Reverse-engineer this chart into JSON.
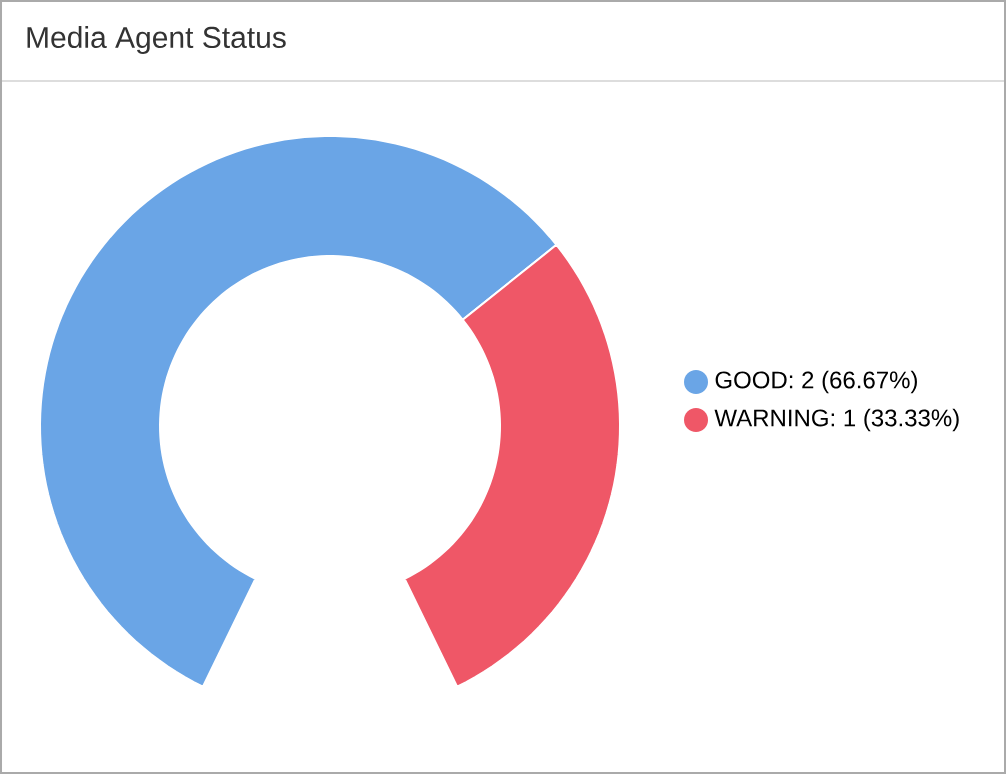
{
  "chart_data": {
    "type": "donut",
    "title": "Media Agent Status",
    "categories": [
      "GOOD: 2 (66.67%)",
      "WARNING: 1 (33.33%)"
    ],
    "values": [
      2,
      1
    ],
    "colors": [
      "#6aa5e6",
      "#ef5767"
    ],
    "legend": "right"
  }
}
